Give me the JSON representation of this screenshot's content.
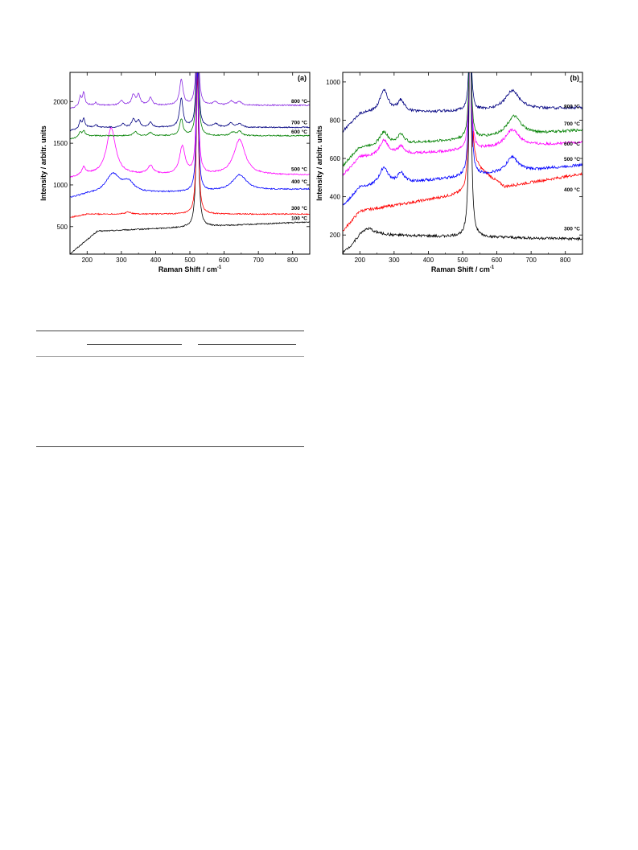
{
  "chart_data": [
    {
      "type": "line",
      "panel_label": "(a)",
      "xlabel": "Raman Shift / cm",
      "xlabel_sup": "-1",
      "ylabel": "Intensity / arbitr. units",
      "xlim": [
        150,
        850
      ],
      "ylim": [
        170,
        2350
      ],
      "xticks": [
        200,
        300,
        400,
        500,
        600,
        700,
        800
      ],
      "yticks": [
        500,
        1000,
        1500,
        2000
      ],
      "series": [
        {
          "name": "100 °C",
          "color": "#000000",
          "baseline": 430,
          "label_y": 560,
          "peaks": [
            [
              522,
              1900,
              4
            ]
          ],
          "end_slope": 0.18,
          "start_rise": true
        },
        {
          "name": "300 °C",
          "color": "#ff0000",
          "baseline": 650,
          "label_y": 680,
          "peaks": [
            [
              522,
              1700,
              4
            ],
            [
              320,
              25,
              10
            ]
          ],
          "end_slope": 0.0
        },
        {
          "name": "400 °C",
          "color": "#0000ff",
          "baseline": 880,
          "label_y": 1000,
          "peaks": [
            [
              275,
              230,
              25
            ],
            [
              320,
              120,
              20
            ],
            [
              522,
              1500,
              4
            ],
            [
              645,
              190,
              25
            ]
          ],
          "end_slope": 0.1
        },
        {
          "name": "500 °C",
          "color": "#ff00ff",
          "baseline": 1120,
          "label_y": 1150,
          "peaks": [
            [
              270,
              560,
              16
            ],
            [
              190,
              90,
              6
            ],
            [
              385,
              100,
              10
            ],
            [
              478,
              330,
              10
            ],
            [
              522,
              1500,
              4
            ],
            [
              645,
              420,
              20
            ]
          ],
          "end_slope": 0.0
        },
        {
          "name": "600 °C",
          "color": "#008000",
          "baseline": 1590,
          "label_y": 1600,
          "peaks": [
            [
              180,
              60,
              4
            ],
            [
              190,
              70,
              4
            ],
            [
              340,
              50,
              6
            ],
            [
              385,
              40,
              6
            ],
            [
              475,
              200,
              6
            ],
            [
              522,
              1200,
              4
            ],
            [
              625,
              40,
              8
            ],
            [
              645,
              50,
              8
            ]
          ],
          "end_slope": 0.0
        },
        {
          "name": "700 °C",
          "color": "#000080",
          "baseline": 1690,
          "label_y": 1710,
          "peaks": [
            [
              180,
              90,
              4
            ],
            [
              190,
              110,
              4
            ],
            [
              225,
              30,
              5
            ],
            [
              305,
              40,
              6
            ],
            [
              335,
              90,
              6
            ],
            [
              350,
              80,
              6
            ],
            [
              385,
              60,
              6
            ],
            [
              475,
              350,
              6
            ],
            [
              522,
              1200,
              4
            ],
            [
              575,
              40,
              8
            ],
            [
              620,
              50,
              8
            ],
            [
              645,
              40,
              8
            ]
          ],
          "end_slope": 0.0
        },
        {
          "name": "800 °C",
          "color": "#8a2be2",
          "baseline": 1955,
          "label_y": 1965,
          "peaks": [
            [
              180,
              110,
              4
            ],
            [
              190,
              160,
              4
            ],
            [
              225,
              30,
              5
            ],
            [
              300,
              50,
              6
            ],
            [
              335,
              120,
              6
            ],
            [
              350,
              120,
              6
            ],
            [
              385,
              90,
              6
            ],
            [
              475,
              310,
              6
            ],
            [
              522,
              1200,
              4
            ],
            [
              575,
              40,
              8
            ],
            [
              620,
              50,
              8
            ],
            [
              645,
              40,
              8
            ]
          ],
          "end_slope": 0.0
        }
      ]
    },
    {
      "type": "line",
      "panel_label": "(b)",
      "xlabel": "Raman Shift / cm",
      "xlabel_sup": "-1",
      "ylabel": "Intensity / arbitr. units",
      "xlim": [
        150,
        850
      ],
      "ylim": [
        100,
        1050
      ],
      "xticks": [
        200,
        300,
        400,
        500,
        600,
        700,
        800
      ],
      "yticks": [
        200,
        400,
        600,
        800,
        1000
      ],
      "series": [
        {
          "name": "300 °C",
          "color": "#000000",
          "baseline": 200,
          "label_y": 215,
          "peaks": [
            [
              210,
              50,
              30
            ],
            [
              522,
              1200,
              4
            ]
          ],
          "end_slope": -0.03,
          "start_rise": true
        },
        {
          "name": "400 °C",
          "color": "#ff0000",
          "baseline": 310,
          "label_y": 420,
          "peaks": [
            [
              522,
              1100,
              4
            ]
          ],
          "end_slope": 0.3,
          "post_drop": true
        },
        {
          "name": "500 °C",
          "color": "#0000ff",
          "baseline": 440,
          "label_y": 580,
          "peaks": [
            [
              270,
              90,
              15
            ],
            [
              320,
              50,
              12
            ],
            [
              522,
              900,
              4
            ],
            [
              645,
              80,
              20
            ]
          ],
          "end_slope": 0.18
        },
        {
          "name": "600 °C",
          "color": "#ff00ff",
          "baseline": 600,
          "label_y": 660,
          "peaks": [
            [
              270,
              80,
              15
            ],
            [
              320,
              40,
              12
            ],
            [
              522,
              700,
              4
            ],
            [
              645,
              90,
              25
            ]
          ],
          "end_slope": 0.12
        },
        {
          "name": "700 °C",
          "color": "#008000",
          "baseline": 650,
          "label_y": 765,
          "peaks": [
            [
              270,
              70,
              15
            ],
            [
              320,
              50,
              12
            ],
            [
              522,
              650,
              4
            ],
            [
              650,
              100,
              25
            ]
          ],
          "end_slope": 0.14
        },
        {
          "name": "800 °C",
          "color": "#000080",
          "baseline": 830,
          "label_y": 855,
          "peaks": [
            [
              270,
              120,
              15
            ],
            [
              320,
              60,
              12
            ],
            [
              522,
              500,
              4
            ],
            [
              645,
              100,
              25
            ]
          ],
          "end_slope": 0.05
        }
      ]
    }
  ]
}
